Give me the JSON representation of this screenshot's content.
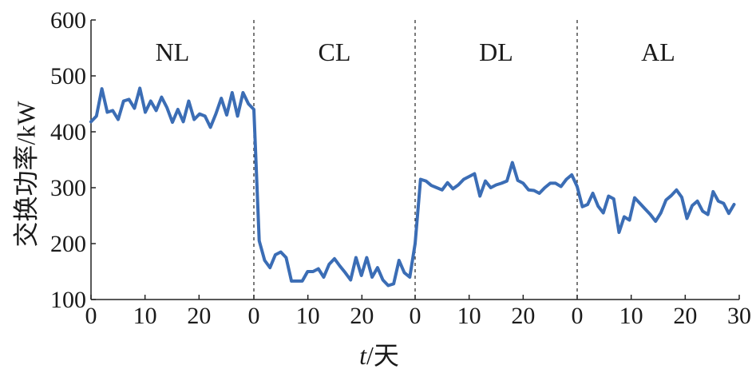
{
  "chart_data": {
    "type": "line",
    "ylabel": "交换功率/kW",
    "xlabel_italic": "t",
    "xlabel_rest": "/天",
    "ylim": [
      100,
      600
    ],
    "y_ticks": [
      "100",
      "200",
      "300",
      "400",
      "500",
      "600"
    ],
    "grid": false,
    "line_color": "#3b6db5",
    "segments": [
      {
        "label": "NL",
        "x_ticks": [
          "0",
          "10",
          "20"
        ],
        "values": [
          418,
          428,
          477,
          435,
          438,
          422,
          455,
          458,
          442,
          478,
          435,
          455,
          438,
          462,
          443,
          417,
          440,
          418,
          455,
          422,
          432,
          428,
          408,
          432,
          460,
          430,
          470,
          428,
          470,
          450
        ]
      },
      {
        "label": "CL",
        "x_ticks": [
          "0",
          "10",
          "20"
        ],
        "values": [
          440,
          205,
          170,
          157,
          180,
          185,
          175,
          133,
          133,
          133,
          150,
          150,
          155,
          140,
          163,
          173,
          160,
          148,
          135,
          175,
          143,
          175,
          140,
          157,
          135,
          125,
          128,
          170,
          148,
          140
        ]
      },
      {
        "label": "DL",
        "x_ticks": [
          "0",
          "10",
          "20"
        ],
        "values": [
          200,
          315,
          312,
          304,
          300,
          296,
          309,
          298,
          305,
          315,
          320,
          325,
          285,
          312,
          300,
          305,
          308,
          312,
          345,
          313,
          308,
          296,
          295,
          290,
          300,
          308,
          308,
          302,
          315,
          323
        ]
      },
      {
        "label": "AL",
        "x_ticks": [
          "0",
          "10",
          "20",
          "30"
        ],
        "values": [
          302,
          266,
          270,
          290,
          267,
          255,
          285,
          280,
          220,
          248,
          242,
          282,
          272,
          262,
          252,
          240,
          255,
          278,
          286,
          296,
          283,
          245,
          268,
          276,
          258,
          252,
          293,
          276,
          272,
          254,
          270
        ]
      }
    ]
  }
}
